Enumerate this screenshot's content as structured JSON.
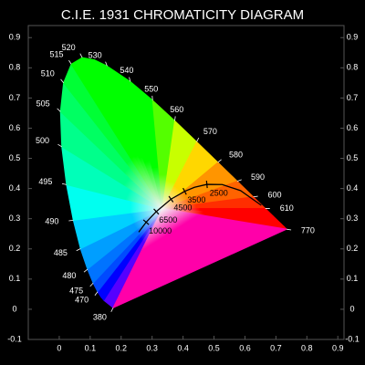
{
  "chart_data": {
    "type": "chromaticity",
    "title": "C.I.E. 1931  CHROMATICITY  DIAGRAM",
    "background": "#000000",
    "text_color": "#ffffff",
    "frame_color": "#555555",
    "planckian_color": "#000000",
    "xlim": [
      -0.1,
      0.92
    ],
    "ylim": [
      -0.1,
      0.94
    ],
    "xticks": [
      0,
      0.1,
      0.2,
      0.3,
      0.4,
      0.5,
      0.6,
      0.7,
      0.8,
      0.9
    ],
    "yticks": [
      -0.1,
      0,
      0.1,
      0.2,
      0.3,
      0.4,
      0.5,
      0.6,
      0.7,
      0.8,
      0.9
    ],
    "white_point": [
      0.3333,
      0.3333
    ],
    "spectral_locus": {
      "labels": [
        "380",
        null,
        null,
        "470",
        "475",
        "480",
        "485",
        "490",
        "495",
        "500",
        "505",
        "510",
        "515",
        "520",
        null,
        "530",
        "540",
        "550",
        "560",
        "570",
        "580",
        "590",
        "600",
        "610",
        null,
        null,
        "770"
      ],
      "x": [
        0.1741,
        0.144,
        0.1355,
        0.1241,
        0.1096,
        0.0913,
        0.0687,
        0.0454,
        0.0235,
        0.0082,
        0.0039,
        0.0139,
        0.0389,
        0.0743,
        0.1142,
        0.1547,
        0.2296,
        0.3016,
        0.3731,
        0.4441,
        0.5125,
        0.5752,
        0.627,
        0.6658,
        0.6915,
        0.726,
        0.7347
      ],
      "y": [
        0.005,
        0.0297,
        0.0399,
        0.0578,
        0.0868,
        0.1327,
        0.2007,
        0.295,
        0.4127,
        0.5384,
        0.6548,
        0.7502,
        0.812,
        0.8338,
        0.8262,
        0.8059,
        0.7543,
        0.6923,
        0.6245,
        0.5547,
        0.4866,
        0.4242,
        0.3725,
        0.334,
        0.3083,
        0.274,
        0.2653
      ]
    },
    "planckian_locus": {
      "labels": [
        null,
        "10000",
        "6500",
        "4500",
        "3500",
        null,
        "2500",
        null,
        null,
        null
      ],
      "x": [
        0.2568,
        0.2807,
        0.3135,
        0.3611,
        0.4053,
        0.4369,
        0.477,
        0.5267,
        0.5857,
        0.6528
      ],
      "y": [
        0.2555,
        0.2884,
        0.3237,
        0.3649,
        0.3907,
        0.4041,
        0.4137,
        0.4133,
        0.3931,
        0.3444
      ]
    }
  }
}
